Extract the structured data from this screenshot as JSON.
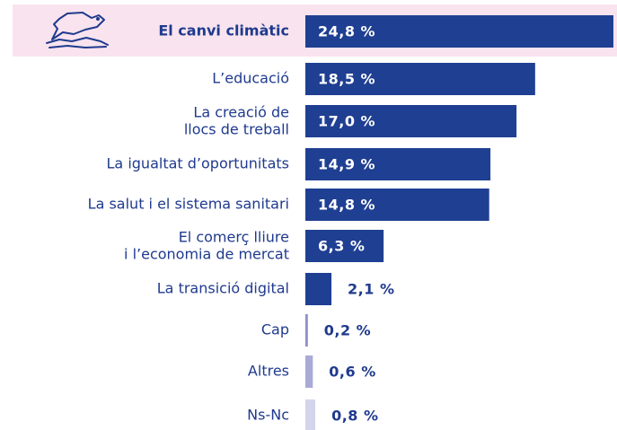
{
  "chart_data": {
    "type": "bar",
    "orientation": "horizontal",
    "categories": [
      "El canvi climàtic",
      "L’educació",
      "La creació de\nllocs de treball",
      "La igualtat d’oportunitats",
      "La salut i el sistema sanitari",
      "El comerç lliure\ni l’economia de mercat",
      "La transició digital",
      "Cap",
      "Altres",
      "Ns-Nc"
    ],
    "values": [
      24.8,
      18.5,
      17.0,
      14.9,
      14.8,
      6.3,
      2.1,
      0.2,
      0.6,
      0.8
    ],
    "value_labels": [
      "24,8 %",
      "18,5 %",
      "17,0 %",
      "14,9 %",
      "14,8 %",
      "6,3 %",
      "2,1 %",
      "0,2 %",
      "0,6 %",
      "0,8 %"
    ],
    "colors": [
      "#1f3f92",
      "#1f3f92",
      "#1f3f92",
      "#1f3f92",
      "#1f3f92",
      "#1f3f92",
      "#1f3f92",
      "#8e90c6",
      "#a9aad5",
      "#d4d5ec"
    ]
  }
}
